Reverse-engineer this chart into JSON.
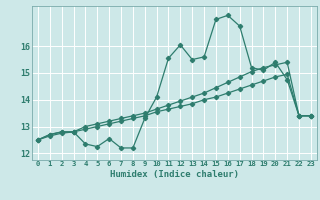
{
  "title": "",
  "xlabel": "Humidex (Indice chaleur)",
  "x": [
    0,
    1,
    2,
    3,
    4,
    5,
    6,
    7,
    8,
    9,
    10,
    11,
    12,
    13,
    14,
    15,
    16,
    17,
    18,
    19,
    20,
    21,
    22,
    23
  ],
  "line1": [
    12.5,
    12.7,
    12.8,
    12.8,
    12.35,
    12.25,
    12.55,
    12.2,
    12.2,
    13.3,
    14.1,
    15.55,
    16.05,
    15.5,
    15.6,
    17.0,
    17.15,
    16.75,
    15.2,
    15.1,
    15.4,
    14.75,
    13.4,
    13.4
  ],
  "line2": [
    12.5,
    12.7,
    12.8,
    12.8,
    13.0,
    13.1,
    13.2,
    13.3,
    13.4,
    13.5,
    13.65,
    13.8,
    13.95,
    14.1,
    14.25,
    14.45,
    14.65,
    14.85,
    15.05,
    15.2,
    15.3,
    15.4,
    13.4,
    13.4
  ],
  "line3": [
    12.5,
    12.65,
    12.75,
    12.8,
    12.9,
    13.0,
    13.1,
    13.2,
    13.3,
    13.4,
    13.55,
    13.65,
    13.75,
    13.85,
    14.0,
    14.1,
    14.25,
    14.4,
    14.55,
    14.7,
    14.85,
    14.95,
    13.4,
    13.4
  ],
  "line_color": "#2e7d6e",
  "bg_color": "#cde8e8",
  "grid_color": "#b0d8d8",
  "ylim": [
    11.75,
    17.5
  ],
  "yticks": [
    12,
    13,
    14,
    15,
    16
  ],
  "xticks": [
    0,
    1,
    2,
    3,
    4,
    5,
    6,
    7,
    8,
    9,
    10,
    11,
    12,
    13,
    14,
    15,
    16,
    17,
    18,
    19,
    20,
    21,
    22,
    23
  ],
  "marker": "D",
  "markersize": 2.2,
  "linewidth": 0.9
}
